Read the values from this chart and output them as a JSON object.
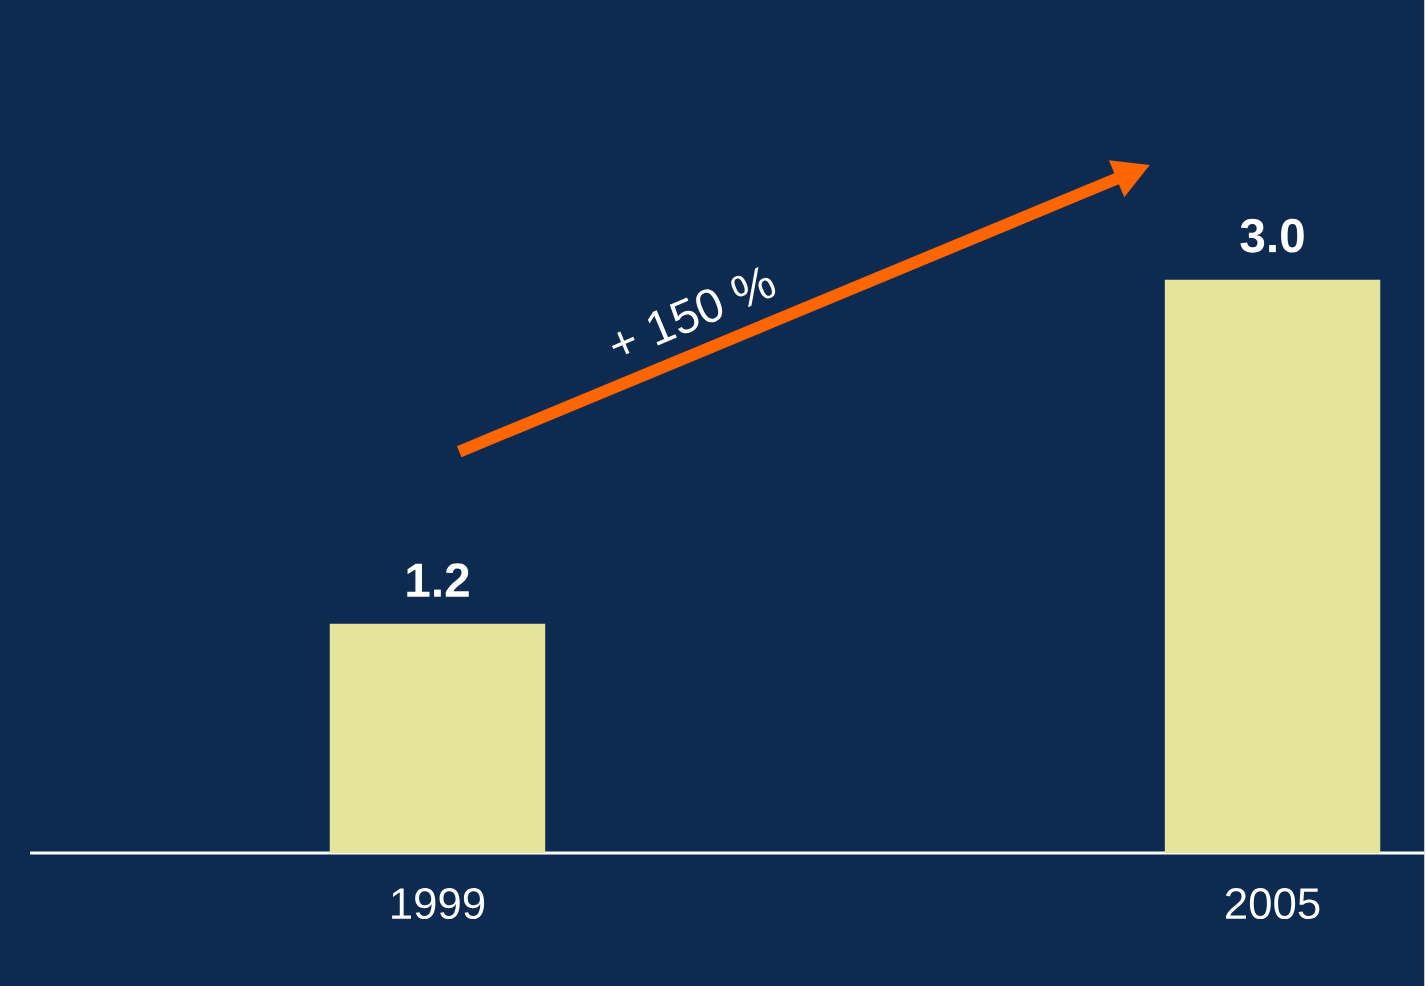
{
  "chart_data": {
    "type": "bar",
    "categories": [
      "1999",
      "2005"
    ],
    "values": [
      1.2,
      3.0
    ],
    "value_labels": [
      "1.2",
      "3.0"
    ],
    "color": "#e4e49a",
    "annotations": [
      "+ 150 %"
    ]
  }
}
